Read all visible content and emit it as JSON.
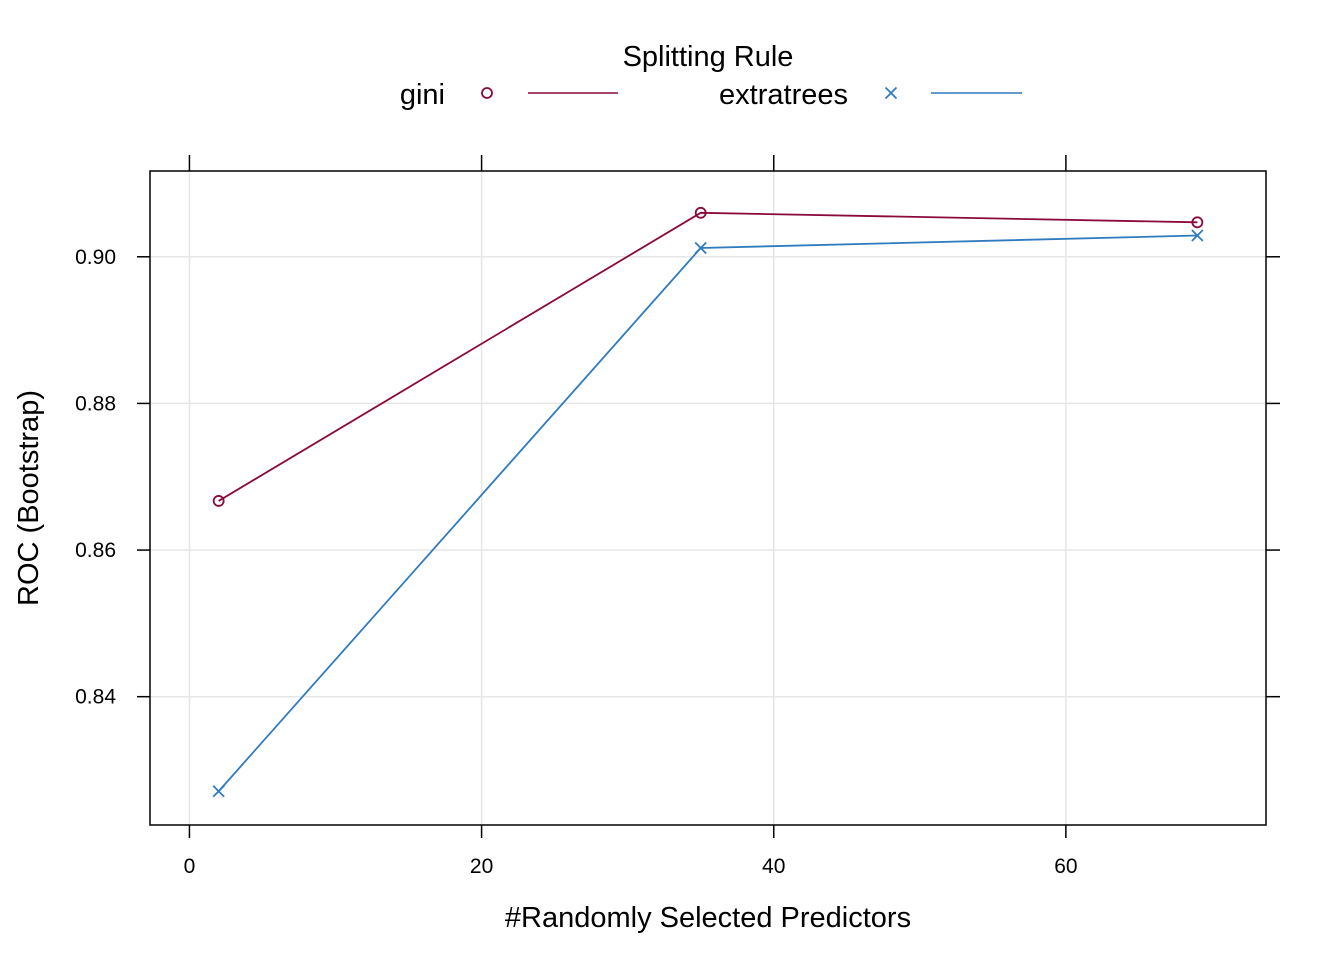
{
  "chart_data": {
    "type": "line",
    "legend": {
      "title": "Splitting Rule",
      "placement": "top",
      "entries": [
        {
          "label": "gini",
          "marker": "circle-open",
          "color": "#8B0A3C"
        },
        {
          "label": "extratrees",
          "marker": "x",
          "color": "#2F7BBF"
        }
      ]
    },
    "xlabel": "#Randomly Selected Predictors",
    "ylabel": "ROC (Bootstrap)",
    "xlim": [
      -2.7,
      73.7
    ],
    "ylim": [
      0.8225,
      0.9117
    ],
    "xticks": [
      0,
      20,
      40,
      60
    ],
    "xtick_labels": [
      "0",
      "20",
      "40",
      "60"
    ],
    "yticks": [
      0.84,
      0.86,
      0.88,
      0.9
    ],
    "ytick_labels": [
      "0.84",
      "0.86",
      "0.88",
      "0.90"
    ],
    "grid": true,
    "series": [
      {
        "name": "gini",
        "color": "#8B0A3C",
        "marker": "circle-open",
        "x": [
          2,
          35,
          69
        ],
        "y": [
          0.8667,
          0.906,
          0.9047
        ]
      },
      {
        "name": "extratrees",
        "color": "#2F7BBF",
        "marker": "x",
        "x": [
          2,
          35,
          69
        ],
        "y": [
          0.8271,
          0.9012,
          0.9029
        ]
      }
    ]
  }
}
